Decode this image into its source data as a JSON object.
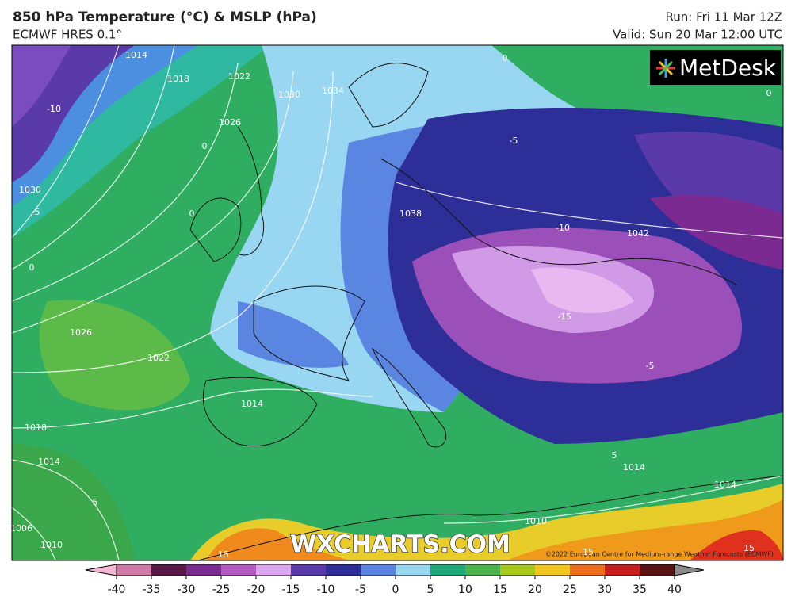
{
  "header": {
    "title": "850 hPa Temperature (°C) & MSLP (hPa)",
    "subtitle": "ECMWF HRES 0.1°",
    "run": "Run: Fri 11 Mar 12Z",
    "valid": "Valid: Sun 20 Mar 12:00 UTC"
  },
  "map": {
    "logo": "MetDesk",
    "watermark": "WXCHARTS.COM",
    "copyright": "©2022 European Centre for Medium-range Weather Forecasts (ECMWF)",
    "contour_labels": [
      "1014",
      "1018",
      "1022",
      "1026",
      "1030",
      "1034",
      "1030",
      "1038",
      "1042",
      "1026",
      "1022",
      "1018",
      "1014",
      "1014",
      "1014",
      "1014",
      "1010",
      "1006",
      "1010",
      "-10",
      "-5",
      "0",
      "0",
      "0",
      "0",
      "0",
      "-5",
      "-10",
      "-15",
      "-5",
      "5",
      "5",
      "15",
      "15",
      "15"
    ]
  },
  "colorbar": {
    "ticks": [
      -40,
      -35,
      -30,
      -25,
      -20,
      -15,
      -10,
      -5,
      0,
      5,
      10,
      15,
      20,
      25,
      30,
      35,
      40
    ],
    "colors": [
      "#f4b6d2",
      "#d07aa8",
      "#5a1848",
      "#7a2a90",
      "#b55ac4",
      "#dca6ee",
      "#5a3aa8",
      "#2e2e98",
      "#5a86e2",
      "#98d6f2",
      "#1fa878",
      "#4cb44c",
      "#a8c81c",
      "#f2c41e",
      "#ee6e1c",
      "#c81e1e",
      "#5a1414",
      "#8a8a8a"
    ]
  }
}
